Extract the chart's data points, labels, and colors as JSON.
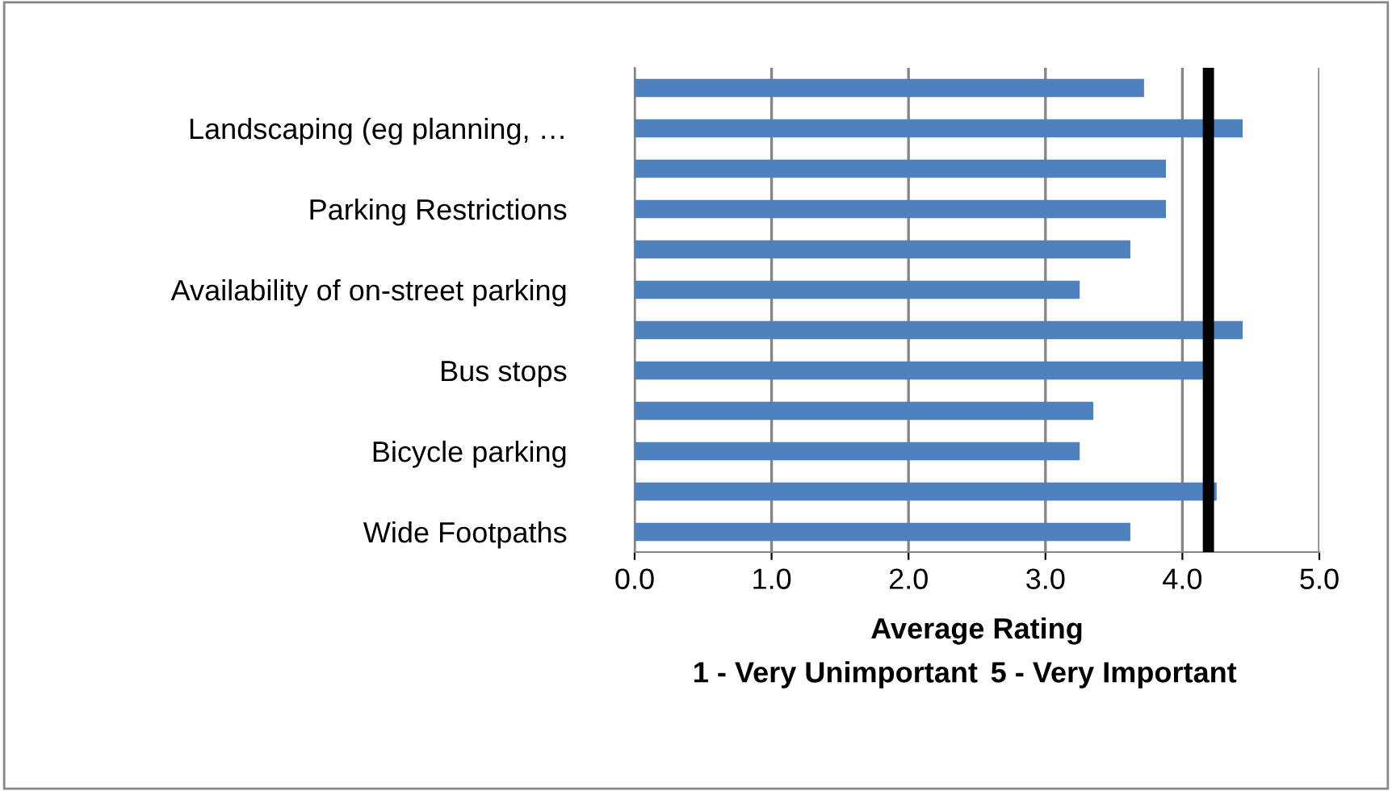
{
  "chart_data": {
    "type": "bar",
    "orientation": "horizontal",
    "xlabel": "Average Rating",
    "categories": [
      null,
      "Landscaping (eg planning, …",
      null,
      "Parking Restrictions",
      null,
      "Availability of on-street parking",
      null,
      "Bus stops",
      null,
      "Bicycle parking",
      null,
      "Wide Footpaths"
    ],
    "values": [
      3.72,
      4.44,
      3.88,
      3.88,
      3.62,
      3.25,
      4.44,
      4.16,
      3.35,
      3.25,
      4.25,
      3.62
    ],
    "color": "#4f81bd",
    "xlim": [
      0,
      5
    ],
    "xticks": [
      {
        "value": 0,
        "label": "0.0"
      },
      {
        "value": 1,
        "label": "1.0"
      },
      {
        "value": 2,
        "label": "2.0"
      },
      {
        "value": 3,
        "label": "3.0"
      },
      {
        "value": 4,
        "label": "4.0"
      },
      {
        "value": 5,
        "label": "5.0"
      }
    ],
    "grid": "x",
    "ref_lines": [
      {
        "axis": "x",
        "value": 4.19,
        "color": "#000000"
      }
    ],
    "annotations": [
      "1 - Very Unimportant",
      "5 - Very Important"
    ]
  }
}
